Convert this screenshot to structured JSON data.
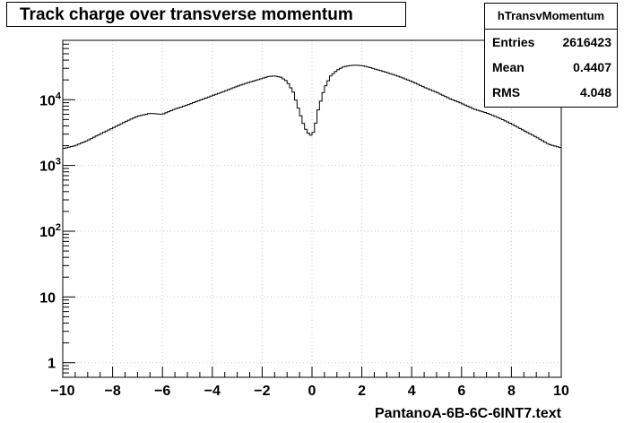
{
  "chart_data": {
    "type": "histogram",
    "title": "Track charge over transverse momentum",
    "xlabel": "PantanoA-6B-6C-6INT7.text",
    "ylabel": "",
    "xlim": [
      -10,
      10
    ],
    "ylim": [
      0.6,
      80000
    ],
    "yscale": "log",
    "grid": true,
    "x_ticks": [
      {
        "v": -10,
        "label": "−10"
      },
      {
        "v": -8,
        "label": "−8"
      },
      {
        "v": -6,
        "label": "−6"
      },
      {
        "v": -4,
        "label": "−4"
      },
      {
        "v": -2,
        "label": "−2"
      },
      {
        "v": 0,
        "label": "0"
      },
      {
        "v": 2,
        "label": "2"
      },
      {
        "v": 4,
        "label": "4"
      },
      {
        "v": 6,
        "label": "6"
      },
      {
        "v": 8,
        "label": "8"
      },
      {
        "v": 10,
        "label": "10"
      }
    ],
    "y_ticks": [
      {
        "v": 1,
        "base": "1",
        "exp": ""
      },
      {
        "v": 10,
        "base": "10",
        "exp": ""
      },
      {
        "v": 100,
        "base": "10",
        "exp": "2"
      },
      {
        "v": 1000,
        "base": "10",
        "exp": "3"
      },
      {
        "v": 10000,
        "base": "10",
        "exp": "4"
      }
    ],
    "series": [
      {
        "x": [
          -10,
          -9.5,
          -9,
          -8.5,
          -8,
          -7.5,
          -7,
          -6.5,
          -6,
          -5.5,
          -5,
          -4.5,
          -4,
          -3.5,
          -3,
          -2.5,
          -2,
          -1.75,
          -1.5,
          -1.25,
          -1,
          -0.75,
          -0.5,
          -0.3,
          -0.1,
          0,
          0.1,
          0.25,
          0.5,
          0.75,
          1,
          1.25,
          1.5,
          1.75,
          2,
          2.25,
          2.5,
          3,
          3.5,
          4,
          4.5,
          5,
          5.5,
          6,
          6.5,
          7,
          7.5,
          8,
          8.5,
          9,
          9.5,
          10
        ],
        "y": [
          1800,
          2000,
          2400,
          3000,
          3700,
          4600,
          5600,
          6200,
          6000,
          7200,
          8300,
          9800,
          11500,
          13500,
          16000,
          18500,
          21000,
          22500,
          23000,
          22000,
          19000,
          13000,
          6500,
          3800,
          2900,
          2900,
          3500,
          7000,
          15000,
          23000,
          28000,
          31500,
          33000,
          33500,
          33000,
          31500,
          29500,
          26000,
          22500,
          19000,
          15500,
          13000,
          10500,
          8800,
          7200,
          6300,
          5300,
          4300,
          3400,
          2700,
          2100,
          1850
        ]
      }
    ]
  },
  "stats": {
    "name": "hTransvMomentum",
    "entries_label": "Entries",
    "entries": "2616423",
    "mean_label": "Mean",
    "mean": "0.4407",
    "rms_label": "RMS",
    "rms": "4.048"
  }
}
